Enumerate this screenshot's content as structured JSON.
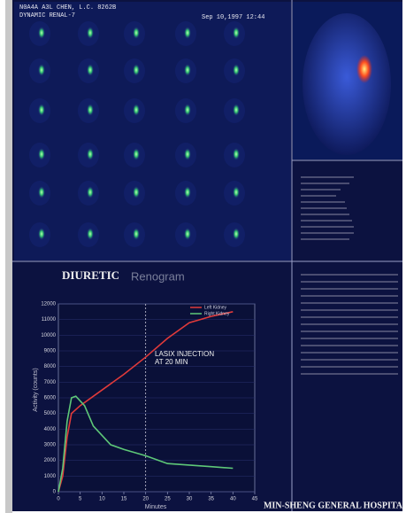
{
  "header": {
    "patient": "N0A4A A3L CHEN, L.C. 8262B",
    "study": "DYNAMIC RENAL-7",
    "date": "Sep 10,1997  12:44"
  },
  "footer": {
    "hospital": "MIN-SHENG GENERAL HOSPITA"
  },
  "chart_data": {
    "type": "line",
    "title": "DIURETIC",
    "subtitle": "Renogram",
    "x_label": "Minutes",
    "y_label": "Activity (counts)",
    "xlim": [
      0,
      45
    ],
    "xticks": [
      0,
      5,
      10,
      15,
      20,
      25,
      30,
      35,
      40,
      45
    ],
    "ylim": [
      0,
      12000
    ],
    "yticks": [
      0,
      1000,
      2000,
      3000,
      4000,
      5000,
      6000,
      7000,
      8000,
      9000,
      10000,
      11000,
      12000
    ],
    "legend": "top-right",
    "annotation": {
      "text": [
        "LASIX INJECTION",
        "AT 20 MIN"
      ],
      "x": 20
    },
    "series": [
      {
        "name": "Left Kidney",
        "color": "#e03a3a",
        "x": [
          0,
          1,
          2,
          3,
          5,
          10,
          15,
          20,
          25,
          30,
          35,
          40
        ],
        "values": [
          0,
          1000,
          3500,
          5000,
          5500,
          6500,
          7500,
          8600,
          9800,
          10800,
          11200,
          11500
        ]
      },
      {
        "name": "Right Kidney",
        "color": "#5ec878",
        "x": [
          0,
          1,
          2,
          3,
          4,
          6,
          8,
          10,
          12,
          15,
          20,
          25,
          30,
          35,
          40
        ],
        "values": [
          0,
          1500,
          4500,
          6000,
          6100,
          5500,
          4200,
          3600,
          3000,
          2700,
          2300,
          1800,
          1700,
          1600,
          1500
        ]
      }
    ]
  }
}
